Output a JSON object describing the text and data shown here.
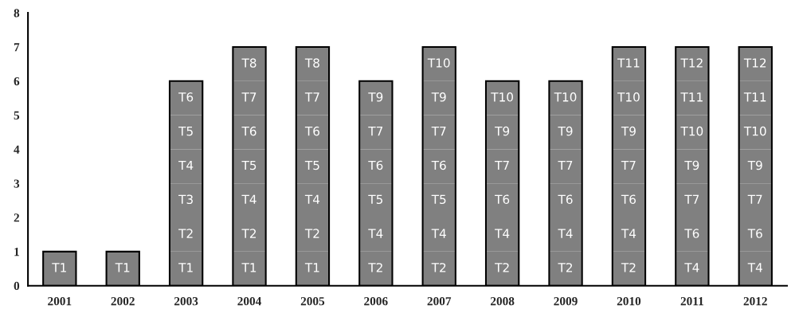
{
  "chart_data": {
    "type": "bar",
    "stacked": true,
    "categories": [
      "2001",
      "2002",
      "2003",
      "2004",
      "2005",
      "2006",
      "2007",
      "2008",
      "2009",
      "2010",
      "2011",
      "2012"
    ],
    "ylim": [
      0,
      8
    ],
    "yticks": [
      0,
      1,
      2,
      3,
      4,
      5,
      6,
      7,
      8
    ],
    "grid": false,
    "series": [
      {
        "color": "#808080",
        "values": [
          1,
          1,
          1,
          1,
          1,
          1,
          1,
          1,
          1,
          1,
          1,
          1
        ],
        "value_labels": [
          "T1",
          "T1",
          "T1",
          "T1",
          "T1",
          "T2",
          "T2",
          "T2",
          "T2",
          "T2",
          "T4",
          "T4"
        ]
      },
      {
        "color": "#808080",
        "values": [
          null,
          null,
          1,
          1,
          1,
          1,
          1,
          1,
          1,
          1,
          1,
          1
        ],
        "value_labels": [
          null,
          null,
          "T2",
          "T2",
          "T2",
          "T4",
          "T4",
          "T4",
          "T4",
          "T4",
          "T6",
          "T6"
        ]
      },
      {
        "color": "#808080",
        "values": [
          null,
          null,
          1,
          1,
          1,
          1,
          1,
          1,
          1,
          1,
          1,
          1
        ],
        "value_labels": [
          null,
          null,
          "T3",
          "T4",
          "T4",
          "T5",
          "T5",
          "T6",
          "T6",
          "T6",
          "T7",
          "T7"
        ]
      },
      {
        "color": "#808080",
        "values": [
          null,
          null,
          1,
          1,
          1,
          1,
          1,
          1,
          1,
          1,
          1,
          1
        ],
        "value_labels": [
          null,
          null,
          "T4",
          "T5",
          "T5",
          "T6",
          "T6",
          "T7",
          "T7",
          "T7",
          "T9",
          "T9"
        ]
      },
      {
        "color": "#808080",
        "values": [
          null,
          null,
          1,
          1,
          1,
          1,
          1,
          1,
          1,
          1,
          1,
          1
        ],
        "value_labels": [
          null,
          null,
          "T5",
          "T6",
          "T6",
          "T7",
          "T7",
          "T9",
          "T9",
          "T9",
          "T10",
          "T10"
        ]
      },
      {
        "color": "#808080",
        "values": [
          null,
          null,
          1,
          1,
          1,
          1,
          1,
          1,
          1,
          1,
          1,
          1
        ],
        "value_labels": [
          null,
          null,
          "T6",
          "T7",
          "T7",
          "T9",
          "T9",
          "T10",
          "T10",
          "T10",
          "T11",
          "T11"
        ]
      },
      {
        "color": "#808080",
        "values": [
          null,
          null,
          null,
          1,
          1,
          null,
          1,
          null,
          null,
          1,
          1,
          1
        ],
        "value_labels": [
          null,
          null,
          null,
          "T8",
          "T8",
          null,
          "T10",
          null,
          null,
          "T11",
          "T12",
          "T12"
        ]
      }
    ]
  }
}
